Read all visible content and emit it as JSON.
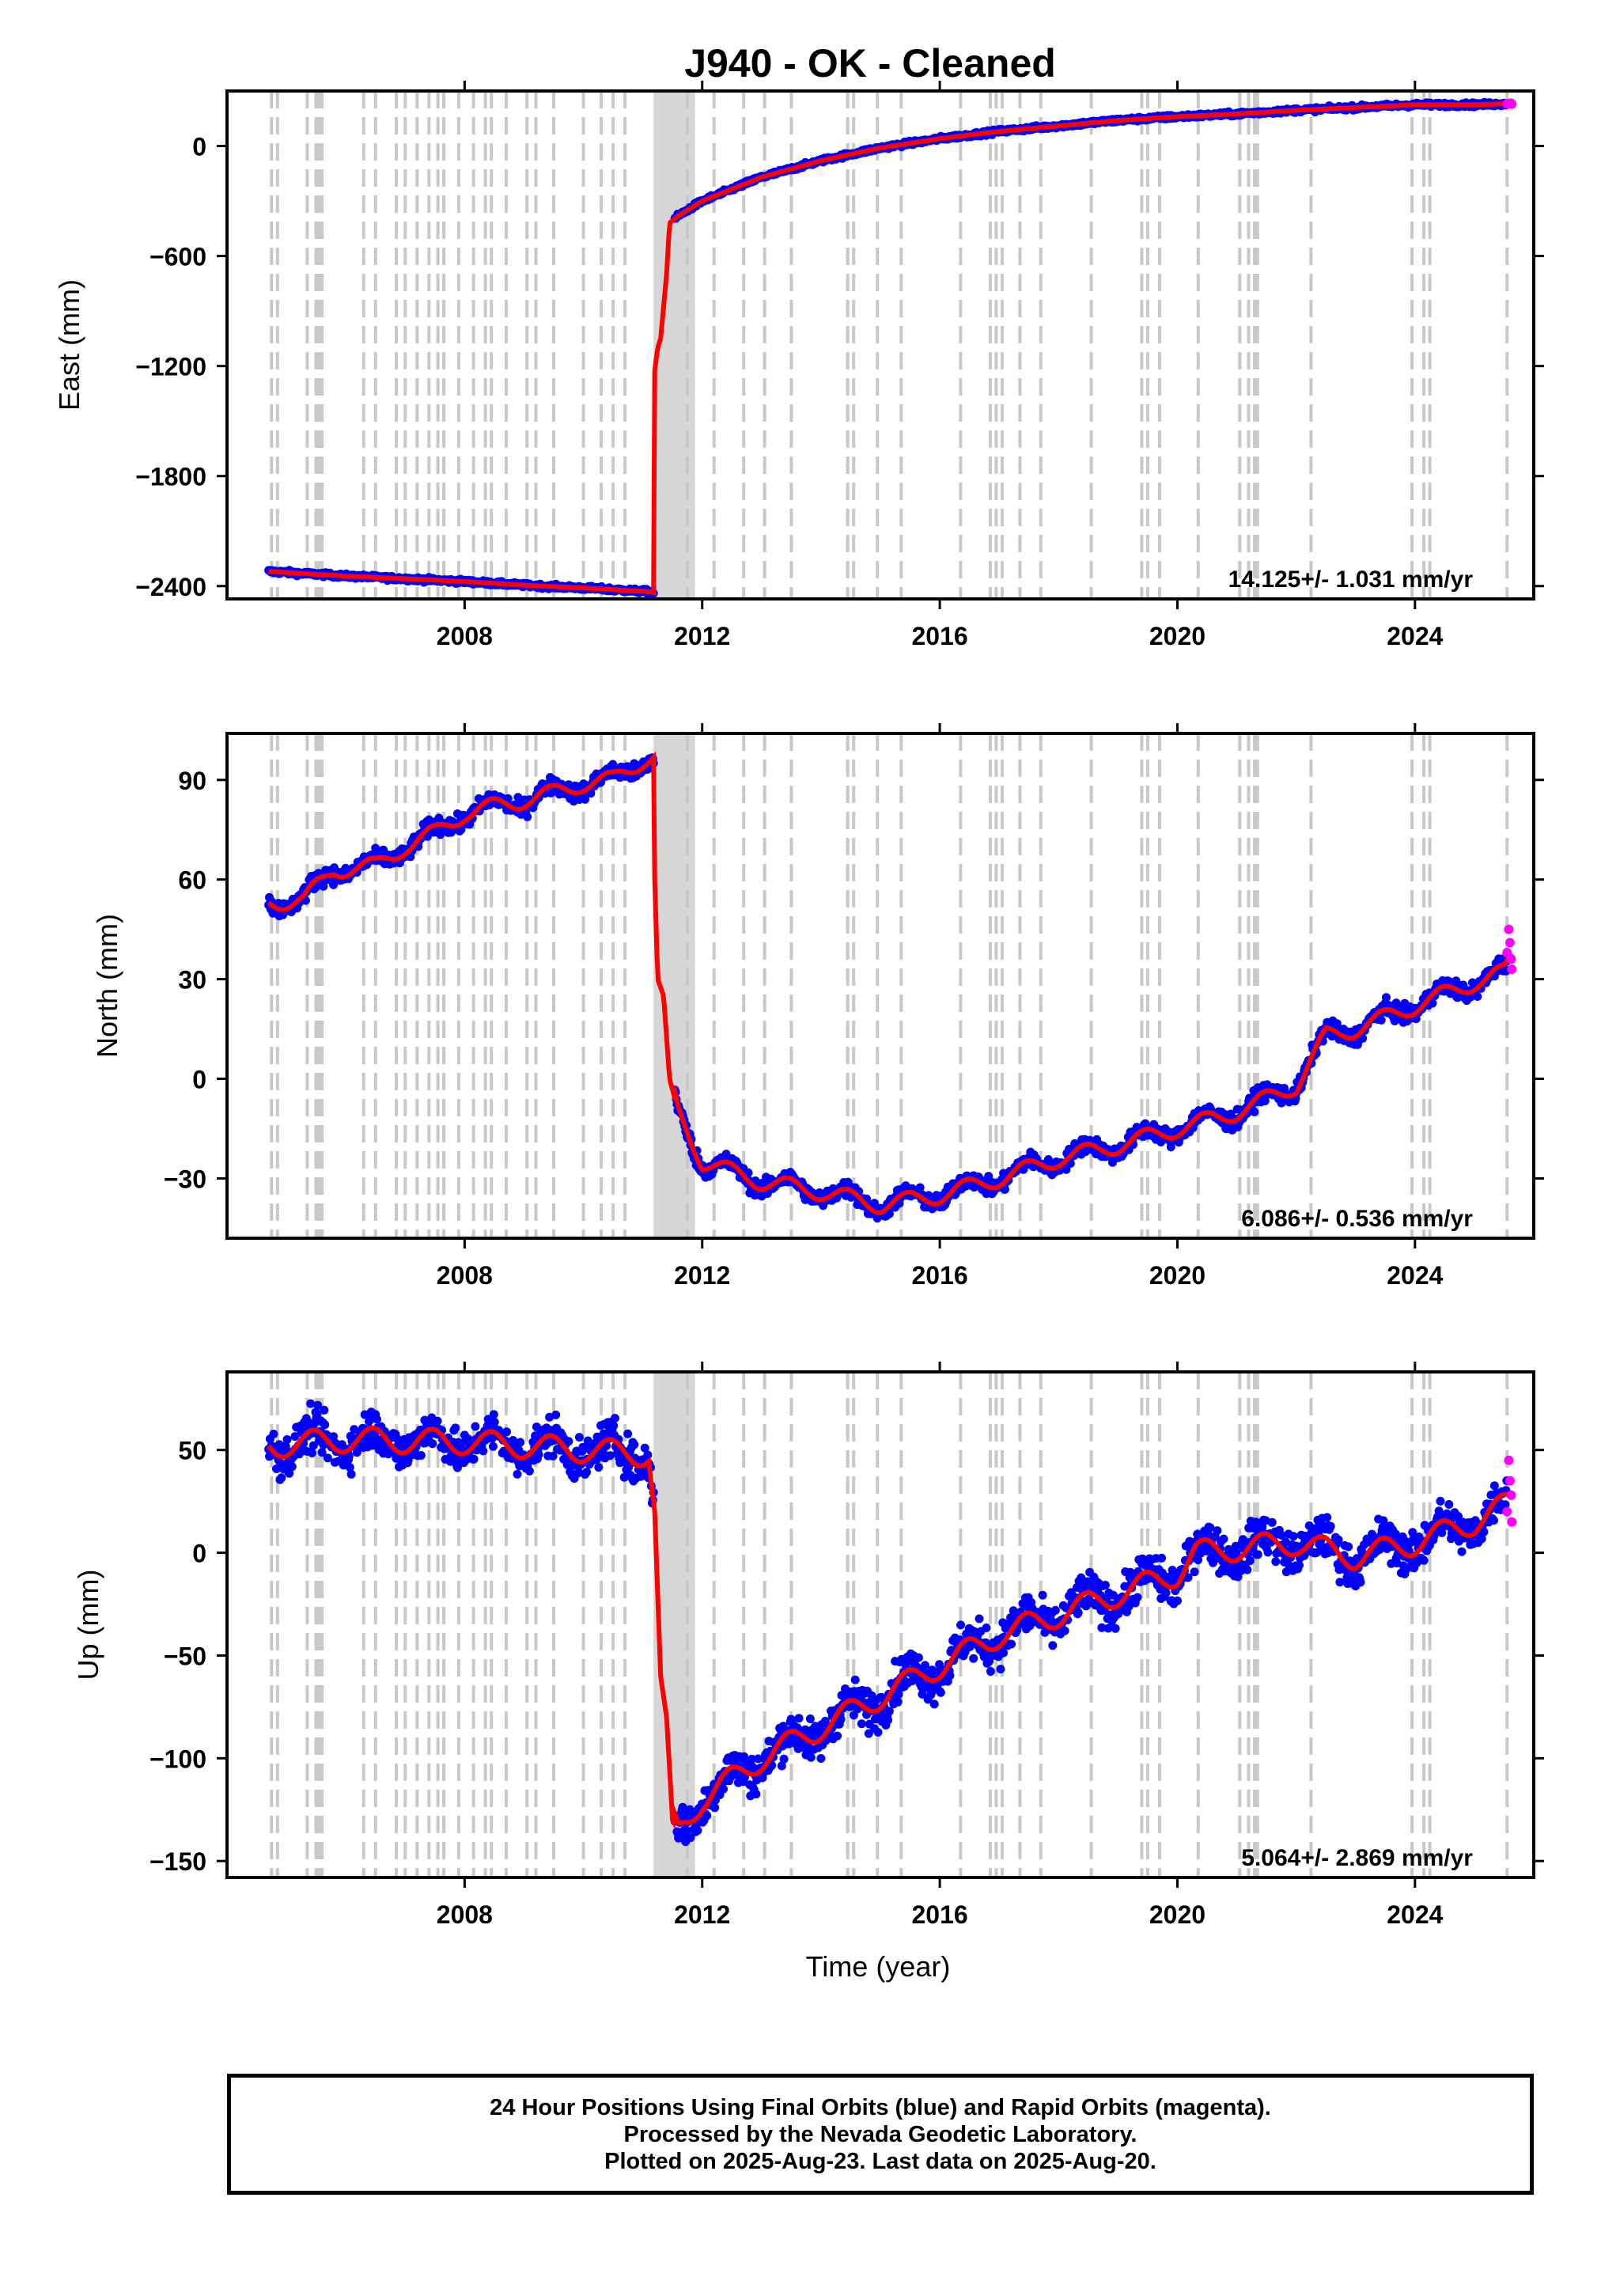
{
  "chart_data": [
    {
      "type": "scatter",
      "title": "J940  - OK - Cleaned",
      "ylabel": "East (mm)",
      "xlim": [
        2004.0,
        2026.0
      ],
      "ylim": [
        -2470,
        300
      ],
      "x_ticks": [
        2008,
        2012,
        2016,
        2020,
        2024
      ],
      "y_ticks": [
        0,
        -600,
        -1200,
        -1800,
        -2400
      ],
      "y_tick_labels": [
        "0",
        "−600",
        "−1200",
        "−1800",
        "−2400"
      ],
      "rate_label": "14.125+/- 1.031 mm/yr",
      "noise": 8,
      "seasonal_amp": 0,
      "rapid_points": [
        [
          2025.55,
          230
        ],
        [
          2025.58,
          232
        ],
        [
          2025.6,
          231
        ],
        [
          2025.62,
          233
        ],
        [
          2025.63,
          229
        ]
      ],
      "trend": [
        [
          2004.7,
          -2320
        ],
        [
          2006.0,
          -2345
        ],
        [
          2008.0,
          -2375
        ],
        [
          2009.0,
          -2395
        ],
        [
          2010.0,
          -2410
        ],
        [
          2011.1,
          -2430
        ],
        [
          2011.18,
          -2435
        ],
        [
          2011.19,
          -1250
        ],
        [
          2011.25,
          -1100
        ],
        [
          2011.3,
          -1050
        ],
        [
          2011.4,
          -700
        ],
        [
          2011.45,
          -420
        ],
        [
          2011.6,
          -380
        ],
        [
          2012.0,
          -300
        ],
        [
          2013.0,
          -170
        ],
        [
          2014.0,
          -80
        ],
        [
          2015.0,
          -10
        ],
        [
          2016.0,
          40
        ],
        [
          2017.0,
          80
        ],
        [
          2018.0,
          110
        ],
        [
          2019.0,
          140
        ],
        [
          2020.0,
          160
        ],
        [
          2021.0,
          175
        ],
        [
          2022.0,
          195
        ],
        [
          2023.0,
          210
        ],
        [
          2024.0,
          225
        ],
        [
          2025.0,
          225
        ],
        [
          2025.65,
          232
        ]
      ]
    },
    {
      "type": "scatter",
      "ylabel": "North (mm)",
      "xlim": [
        2004.0,
        2026.0
      ],
      "ylim": [
        -48,
        104
      ],
      "x_ticks": [
        2008,
        2012,
        2016,
        2020,
        2024
      ],
      "y_ticks": [
        90,
        60,
        30,
        0,
        -30
      ],
      "y_tick_labels": [
        "90",
        "60",
        "30",
        "0",
        "−30"
      ],
      "rate_label": "6.086+/- 0.536 mm/yr",
      "noise": 1.8,
      "seasonal_amp": 2.5,
      "rapid_points": [
        [
          2025.55,
          38
        ],
        [
          2025.58,
          45
        ],
        [
          2025.6,
          41
        ],
        [
          2025.62,
          36
        ],
        [
          2025.63,
          33
        ]
      ],
      "trend": [
        [
          2004.7,
          53
        ],
        [
          2005.3,
          54
        ],
        [
          2005.8,
          63
        ],
        [
          2006.5,
          64
        ],
        [
          2007.0,
          70
        ],
        [
          2007.5,
          74
        ],
        [
          2008.0,
          80
        ],
        [
          2008.5,
          82
        ],
        [
          2009.0,
          84
        ],
        [
          2009.5,
          86
        ],
        [
          2010.0,
          89
        ],
        [
          2010.5,
          90
        ],
        [
          2011.0,
          96
        ],
        [
          2011.18,
          97
        ],
        [
          2011.2,
          60
        ],
        [
          2011.25,
          30
        ],
        [
          2011.35,
          25
        ],
        [
          2011.45,
          0
        ],
        [
          2011.6,
          -10
        ],
        [
          2012.0,
          -25
        ],
        [
          2013.0,
          -31
        ],
        [
          2014.0,
          -34
        ],
        [
          2015.0,
          -38
        ],
        [
          2016.0,
          -35
        ],
        [
          2017.0,
          -30
        ],
        [
          2018.0,
          -24
        ],
        [
          2019.0,
          -20
        ],
        [
          2020.0,
          -15
        ],
        [
          2021.0,
          -10
        ],
        [
          2022.0,
          -2
        ],
        [
          2022.5,
          13
        ],
        [
          2023.0,
          15
        ],
        [
          2024.0,
          22
        ],
        [
          2025.0,
          29
        ],
        [
          2025.5,
          32
        ],
        [
          2025.65,
          37
        ]
      ]
    },
    {
      "type": "scatter",
      "ylabel": "Up (mm)",
      "xlabel": "Time (year)",
      "xlim": [
        2004.0,
        2026.0
      ],
      "ylim": [
        -158,
        88
      ],
      "x_ticks": [
        2008,
        2012,
        2016,
        2020,
        2024
      ],
      "y_ticks": [
        50,
        0,
        -50,
        -100,
        -150
      ],
      "y_tick_labels": [
        "50",
        "0",
        "−50",
        "−100",
        "−150"
      ],
      "rate_label": "5.064+/- 2.869 mm/yr",
      "noise": 7,
      "seasonal_amp": 6,
      "rapid_points": [
        [
          2025.55,
          20
        ],
        [
          2025.58,
          45
        ],
        [
          2025.6,
          35
        ],
        [
          2025.62,
          28
        ],
        [
          2025.63,
          15
        ]
      ],
      "trend": [
        [
          2004.7,
          52
        ],
        [
          2006.0,
          55
        ],
        [
          2008.0,
          54
        ],
        [
          2009.0,
          52
        ],
        [
          2010.0,
          50
        ],
        [
          2011.1,
          48
        ],
        [
          2011.2,
          20
        ],
        [
          2011.3,
          -60
        ],
        [
          2011.4,
          -80
        ],
        [
          2011.5,
          -130
        ],
        [
          2011.6,
          -135
        ],
        [
          2012.0,
          -120
        ],
        [
          2013.0,
          -100
        ],
        [
          2014.0,
          -85
        ],
        [
          2015.0,
          -70
        ],
        [
          2016.0,
          -55
        ],
        [
          2017.0,
          -40
        ],
        [
          2018.0,
          -30
        ],
        [
          2019.0,
          -20
        ],
        [
          2020.0,
          -10
        ],
        [
          2020.3,
          0
        ],
        [
          2021.0,
          2
        ],
        [
          2022.0,
          5
        ],
        [
          2023.0,
          -2
        ],
        [
          2024.0,
          5
        ],
        [
          2025.0,
          15
        ],
        [
          2025.65,
          25
        ]
      ]
    }
  ],
  "gap_lines": [
    2004.75,
    2004.85,
    2005.35,
    2005.5,
    2005.55,
    2005.6,
    2006.3,
    2006.5,
    2006.85,
    2007.0,
    2007.2,
    2007.4,
    2007.55,
    2007.65,
    2007.9,
    2008.15,
    2008.35,
    2008.45,
    2008.7,
    2009.05,
    2009.2,
    2009.5,
    2010.0,
    2010.3,
    2010.5,
    2010.7,
    2011.75,
    2012.2,
    2012.7,
    2013.05,
    2013.5,
    2014.45,
    2014.55,
    2014.95,
    2015.35,
    2016.35,
    2016.85,
    2016.95,
    2017.05,
    2017.35,
    2017.7,
    2018.55,
    2019.4,
    2019.5,
    2019.7,
    2020.35,
    2021.05,
    2021.2,
    2021.3,
    2021.35,
    2022.25,
    2023.95,
    2024.15,
    2024.25,
    2025.55
  ],
  "gap_band": [
    2011.18,
    2011.88
  ],
  "colors": {
    "final_points": "#0000ff",
    "rapid_points": "#ff00ff",
    "trend_line": "#ff0000",
    "gap_lines": "#c8c8c8"
  },
  "footer": {
    "line1": "24 Hour Positions Using Final Orbits (blue) and Rapid Orbits (magenta).",
    "line2": "Processed by the Nevada Geodetic Laboratory.",
    "line3": "Plotted on 2025-Aug-23. Last data on 2025-Aug-20."
  }
}
